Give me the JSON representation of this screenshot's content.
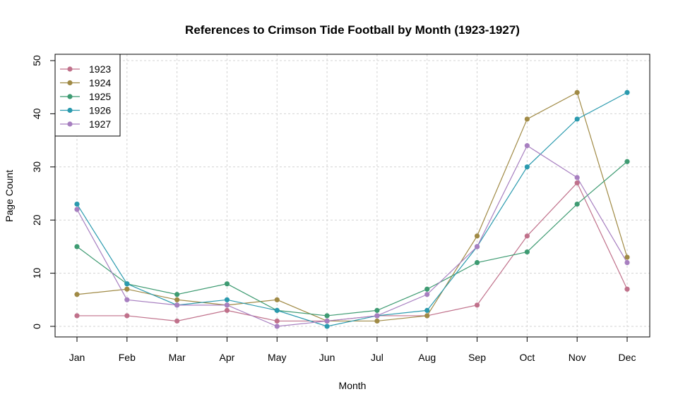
{
  "chart_data": {
    "type": "line",
    "title": "References to Crimson Tide Football by Month (1923-1927)",
    "xlabel": "Month",
    "ylabel": "Page Count",
    "categories": [
      "Jan",
      "Feb",
      "Mar",
      "Apr",
      "May",
      "Jun",
      "Jul",
      "Aug",
      "Sep",
      "Oct",
      "Nov",
      "Dec"
    ],
    "yticks": [
      0,
      10,
      20,
      30,
      40,
      50
    ],
    "ylim": [
      0,
      50
    ],
    "grid": true,
    "legend_position": "top-left",
    "series": [
      {
        "name": "1923",
        "color": "#C0718B",
        "values": [
          2,
          2,
          1,
          3,
          1,
          1,
          2,
          2,
          4,
          17,
          27,
          7
        ]
      },
      {
        "name": "1924",
        "color": "#A08A45",
        "values": [
          6,
          7,
          5,
          4,
          5,
          1,
          1,
          2,
          17,
          39,
          44,
          13
        ]
      },
      {
        "name": "1925",
        "color": "#3E9B72",
        "values": [
          15,
          8,
          6,
          8,
          3,
          2,
          3,
          7,
          12,
          14,
          23,
          31
        ]
      },
      {
        "name": "1926",
        "color": "#2A9AAE",
        "values": [
          23,
          8,
          4,
          5,
          3,
          0,
          2,
          3,
          15,
          30,
          39,
          44
        ]
      },
      {
        "name": "1927",
        "color": "#A77FC0",
        "values": [
          22,
          5,
          4,
          4,
          0,
          1,
          2,
          6,
          15,
          34,
          28,
          12
        ]
      }
    ]
  }
}
